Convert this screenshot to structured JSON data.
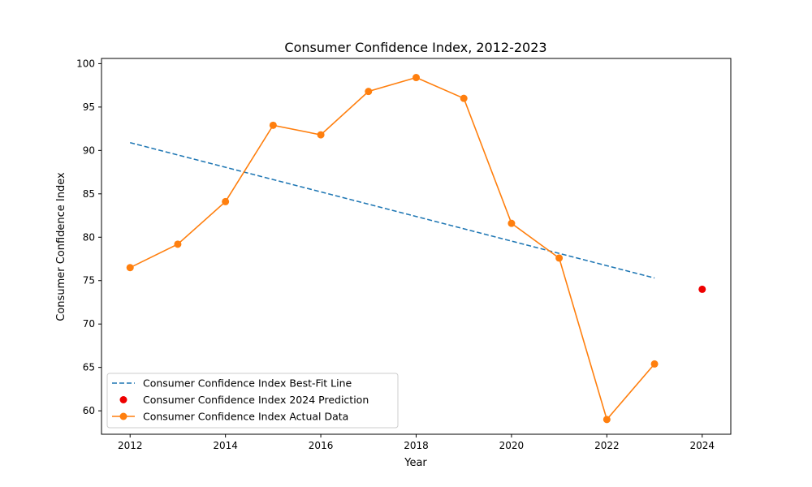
{
  "chart_data": {
    "type": "line",
    "title": "Consumer Confidence Index, 2012-2023",
    "xlabel": "Year",
    "ylabel": "Consumer Confidence Index",
    "xlim": [
      2011.4,
      2024.6
    ],
    "ylim": [
      57.3,
      100.6
    ],
    "x_ticks": [
      2012,
      2014,
      2016,
      2018,
      2020,
      2022,
      2024
    ],
    "y_ticks": [
      60,
      65,
      70,
      75,
      80,
      85,
      90,
      95,
      100
    ],
    "grid": false,
    "legend_position": "lower-left",
    "series": [
      {
        "name": "Consumer Confidence Index Actual Data",
        "style": "line-marker",
        "color": "#ff7f0e",
        "x": [
          2012,
          2013,
          2014,
          2015,
          2016,
          2017,
          2018,
          2019,
          2020,
          2021,
          2022,
          2023
        ],
        "values": [
          76.5,
          79.2,
          84.1,
          92.9,
          91.8,
          96.8,
          98.4,
          96.0,
          81.6,
          77.6,
          59.0,
          65.4
        ]
      },
      {
        "name": "Consumer Confidence Index Best-Fit Line",
        "style": "dashed-line",
        "color": "#1f77b4",
        "x": [
          2012,
          2023
        ],
        "values": [
          90.9,
          75.3
        ]
      },
      {
        "name": "Consumer Confidence Index 2024 Prediction",
        "style": "marker",
        "color": "#ee0000",
        "x": [
          2024
        ],
        "values": [
          74.0
        ]
      }
    ],
    "legend": [
      "Consumer Confidence Index Best-Fit Line",
      "Consumer Confidence Index 2024 Prediction",
      "Consumer Confidence Index Actual Data"
    ]
  }
}
